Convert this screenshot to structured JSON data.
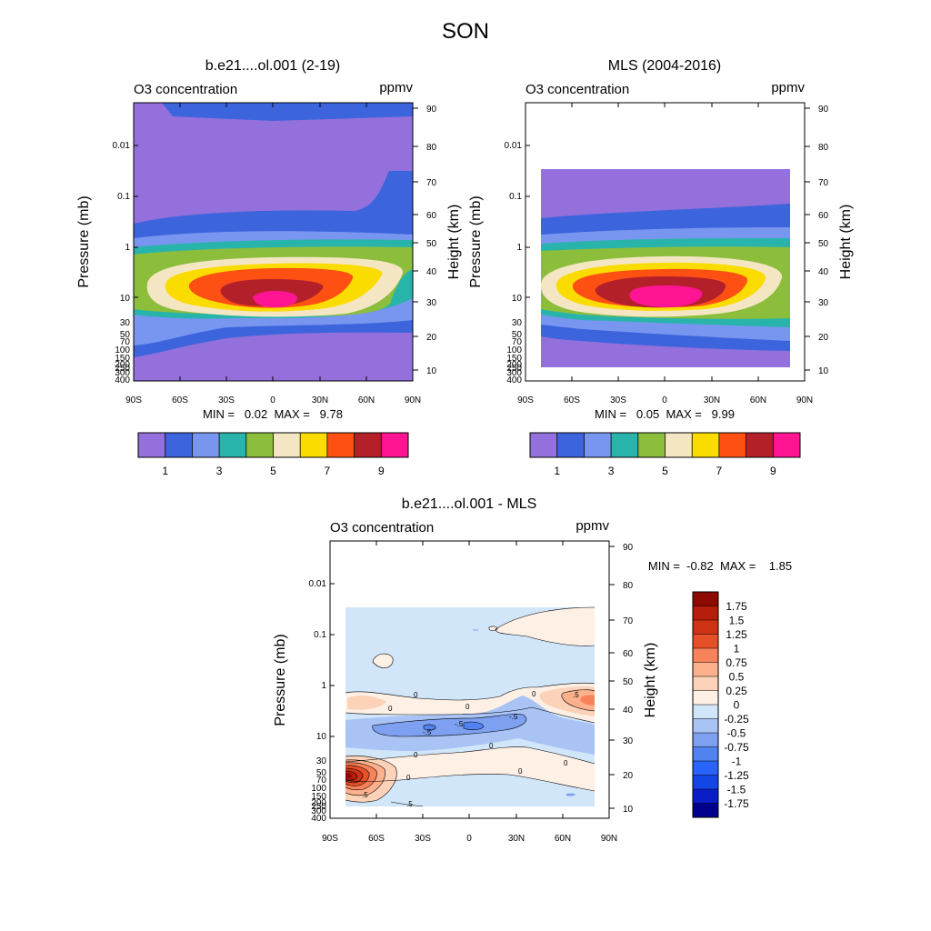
{
  "page": {
    "title": "SON"
  },
  "chart_data": [
    {
      "id": "model",
      "type": "heatmap",
      "title": "b.e21....ol.001 (2-19)",
      "left_label": "O3 concentration",
      "right_label": "ppmv",
      "xlabel": "",
      "ylabel": "Pressure (mb)",
      "y2label": "Height (km)",
      "x_ticks": [
        "90S",
        "60S",
        "30S",
        "0",
        "30N",
        "60N",
        "90N"
      ],
      "y_ticks": [
        "0.01",
        "0.1",
        "1",
        "10",
        "30",
        "50",
        "70",
        "100",
        "150",
        "200",
        "250",
        "300",
        "400"
      ],
      "y2_ticks": [
        "90",
        "80",
        "70",
        "60",
        "50",
        "40",
        "30",
        "20",
        "10"
      ],
      "xlim": [
        -90,
        90
      ],
      "ylim_pressure_mb": [
        0.002,
        400
      ],
      "levels": [
        1,
        2,
        3,
        4,
        5,
        6,
        7,
        8,
        9
      ],
      "stats": "MIN =   0.02  MAX =   9.78",
      "min": 0.02,
      "max": 9.78
    },
    {
      "id": "obs",
      "type": "heatmap",
      "title": "MLS (2004-2016)",
      "left_label": "O3 concentration",
      "right_label": "ppmv",
      "xlabel": "",
      "ylabel": "Pressure (mb)",
      "y2label": "Height (km)",
      "x_ticks": [
        "90S",
        "60S",
        "30S",
        "0",
        "30N",
        "60N",
        "90N"
      ],
      "y_ticks": [
        "0.01",
        "0.1",
        "1",
        "10",
        "30",
        "50",
        "70",
        "100",
        "150",
        "200",
        "250",
        "300",
        "400"
      ],
      "y2_ticks": [
        "90",
        "80",
        "70",
        "60",
        "50",
        "40",
        "30",
        "20",
        "10"
      ],
      "xlim": [
        -90,
        90
      ],
      "ylim_pressure_mb": [
        0.002,
        400
      ],
      "data_extent_lat": [
        -80,
        80
      ],
      "data_extent_pressure_mb": [
        0.046,
        261
      ],
      "levels": [
        1,
        2,
        3,
        4,
        5,
        6,
        7,
        8,
        9
      ],
      "stats": "MIN =   0.05  MAX =   9.99",
      "min": 0.05,
      "max": 9.99
    },
    {
      "id": "diff",
      "type": "heatmap",
      "title": "b.e21....ol.001 - MLS",
      "left_label": "O3 concentration",
      "right_label": "ppmv",
      "xlabel": "",
      "ylabel": "Pressure (mb)",
      "y2label": "Height (km)",
      "x_ticks": [
        "90S",
        "60S",
        "30S",
        "0",
        "30N",
        "60N",
        "90N"
      ],
      "y_ticks": [
        "0.01",
        "0.1",
        "1",
        "10",
        "30",
        "50",
        "70",
        "100",
        "150",
        "200",
        "250",
        "300",
        "400"
      ],
      "y2_ticks": [
        "90",
        "80",
        "70",
        "60",
        "50",
        "40",
        "30",
        "20",
        "10"
      ],
      "xlim": [
        -90,
        90
      ],
      "ylim_pressure_mb": [
        0.002,
        400
      ],
      "data_extent_lat": [
        -80,
        80
      ],
      "data_extent_pressure_mb": [
        0.046,
        261
      ],
      "levels": [
        -1.75,
        -1.5,
        -1.25,
        -1,
        -0.75,
        -0.5,
        -0.25,
        0,
        0.25,
        0.5,
        0.75,
        1,
        1.25,
        1.5,
        1.75
      ],
      "contour_labels": [
        "0",
        "0",
        "0",
        "0",
        "0",
        "0",
        "0",
        "0",
        "0",
        ".5",
        ".5",
        ".5",
        "-.5",
        "-.5",
        "-.5"
      ],
      "stats": "MIN =  -0.82  MAX =    1.85",
      "min": -0.82,
      "max": 1.85
    }
  ],
  "colorbars": {
    "absolute": {
      "colors": [
        "#9370db",
        "#3c64dc",
        "#7896f0",
        "#28b4aa",
        "#8cbe3c",
        "#f5e6c3",
        "#fadc00",
        "#ff5014",
        "#b4202a",
        "#ff1493"
      ],
      "labels": [
        "1",
        "3",
        "5",
        "7",
        "9"
      ]
    },
    "difference": {
      "colors": [
        "#00008c",
        "#0a1ec8",
        "#1446e6",
        "#2864fa",
        "#5082f0",
        "#7ea0f0",
        "#a9c3f5",
        "#d2e6fa",
        "#fff0e6",
        "#fcd2b9",
        "#fcb08c",
        "#f8825a",
        "#e65028",
        "#cd3214",
        "#b41e0a",
        "#8c0a00"
      ],
      "labels": [
        "1.75",
        "1.5",
        "1.25",
        "1",
        "0.75",
        "0.5",
        "0.25",
        "0",
        "-0.25",
        "-0.5",
        "-0.75",
        "-1",
        "-1.25",
        "-1.5",
        "-1.75"
      ]
    }
  }
}
